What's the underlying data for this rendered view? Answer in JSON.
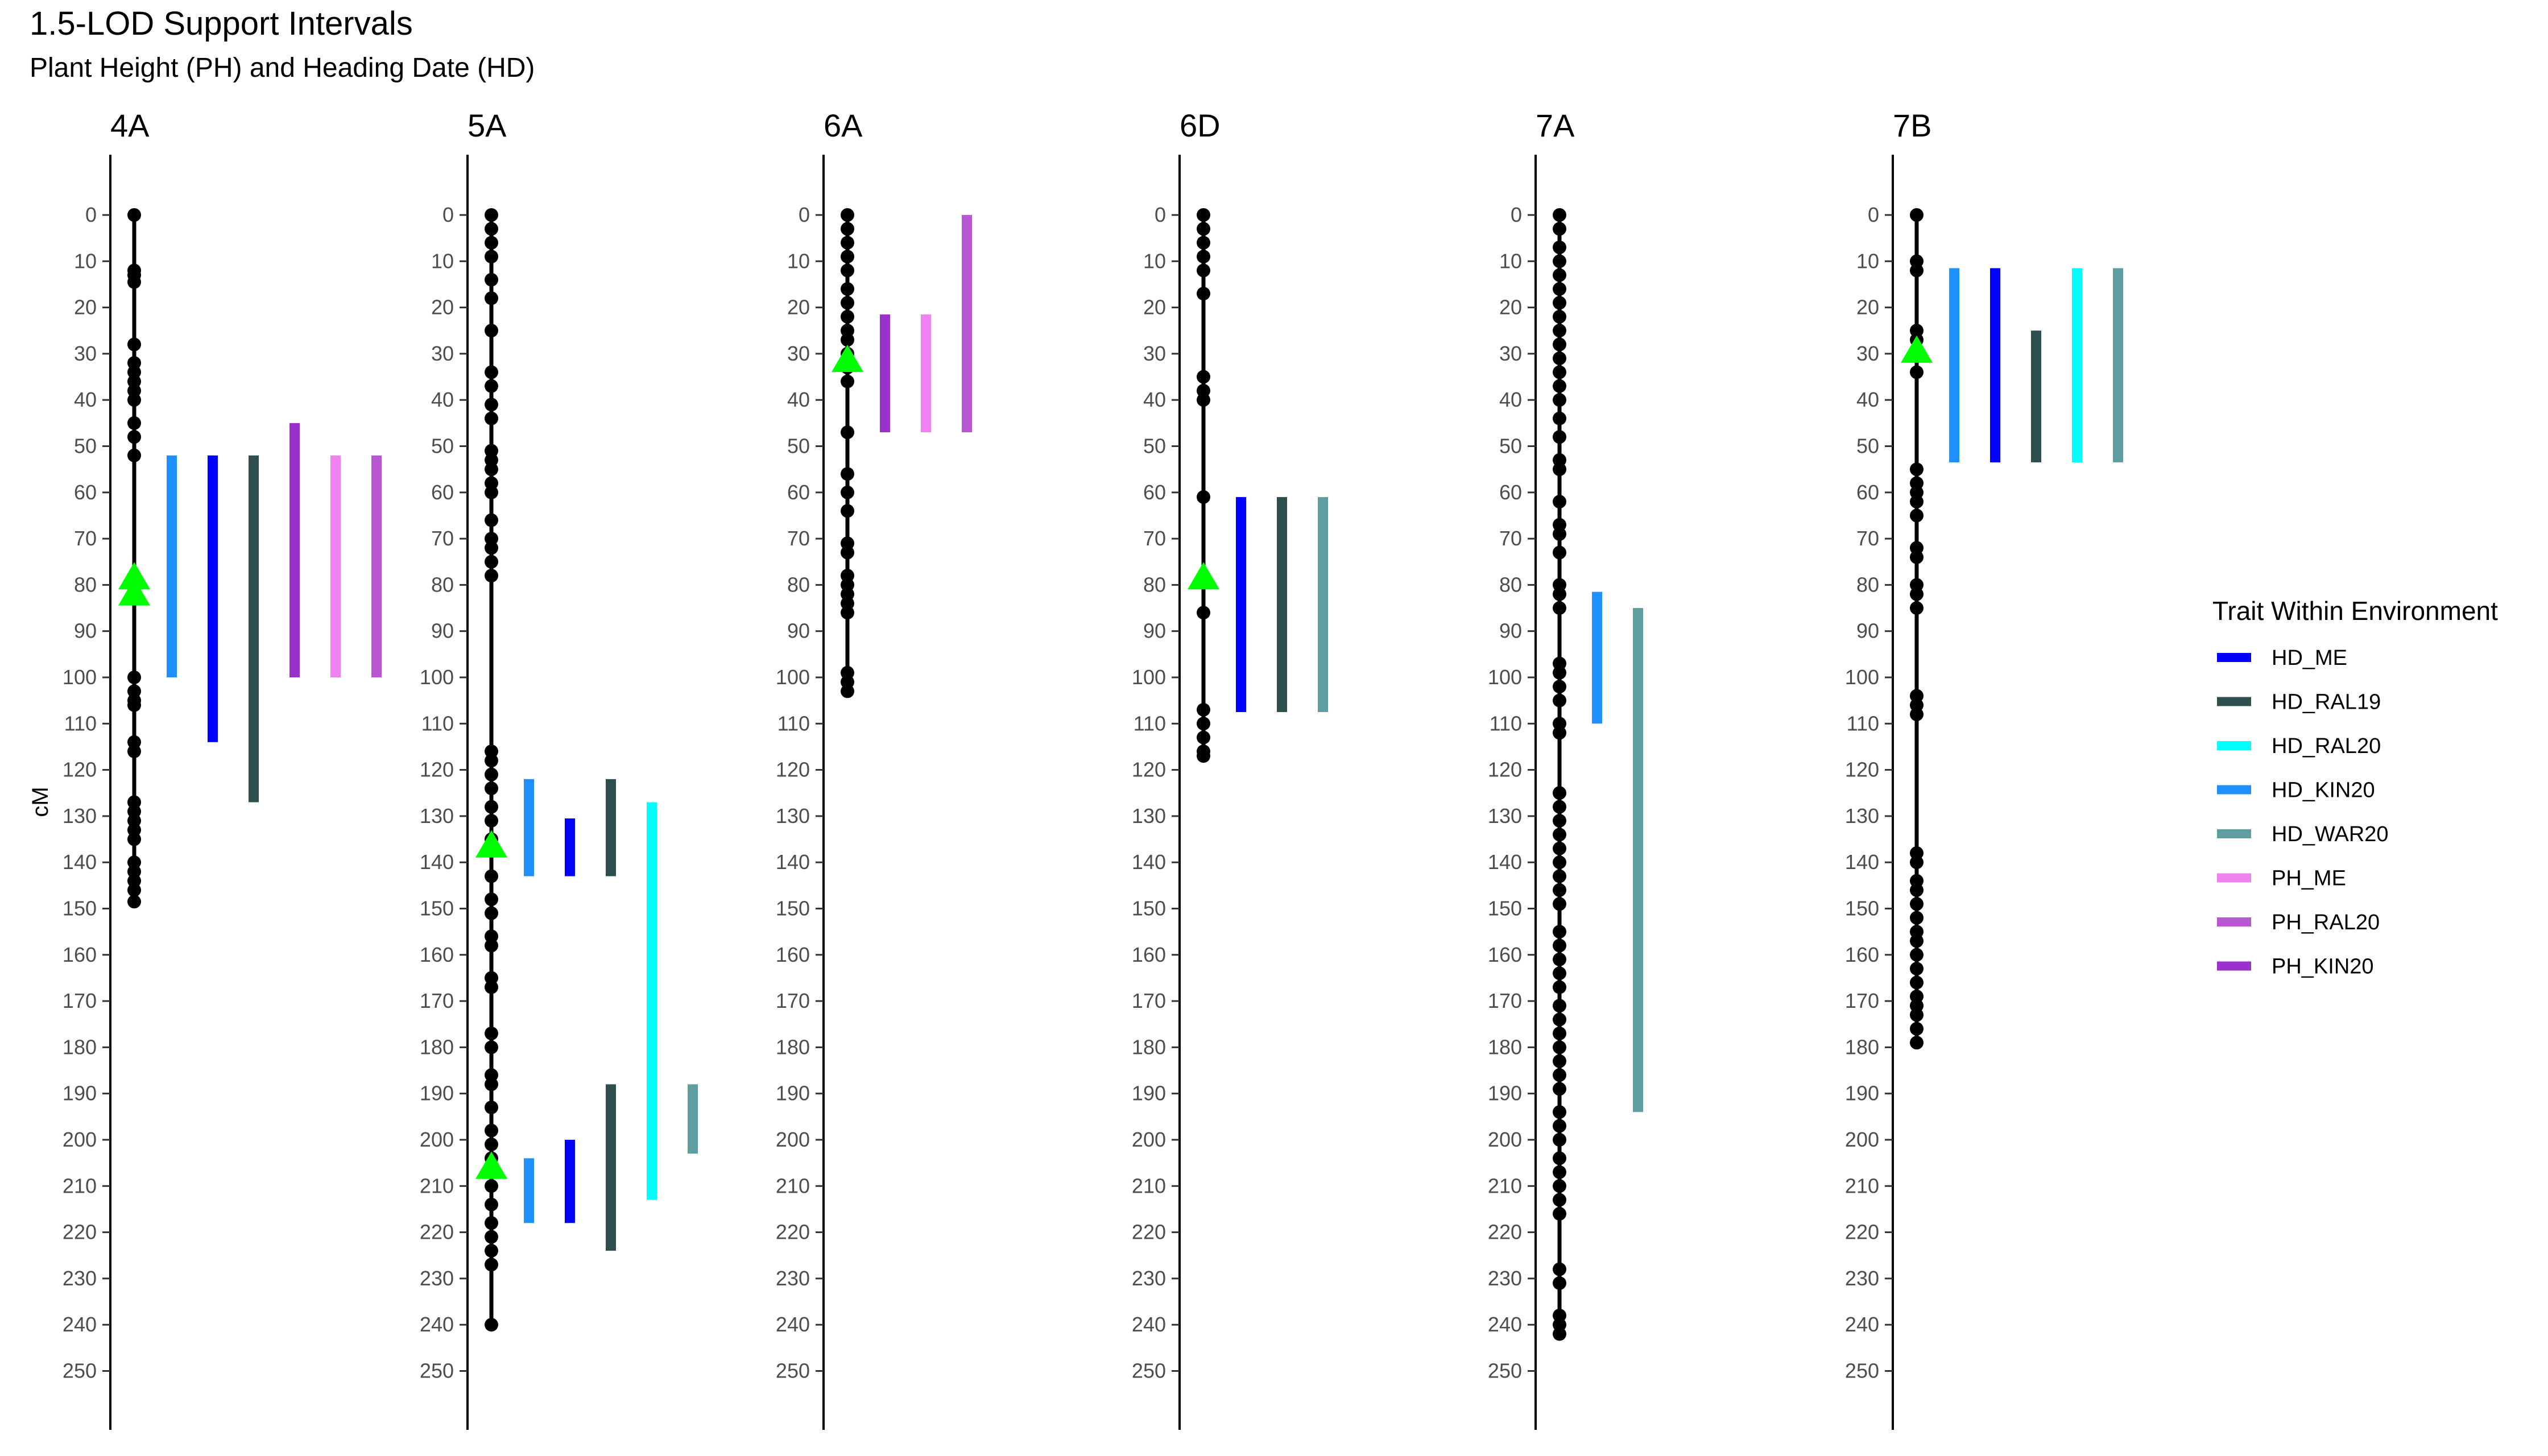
{
  "chart_data": {
    "type": "scatter",
    "title": "1.5-LOD Support Intervals",
    "subtitle": "Plant Height (PH) and Heading Date (HD)",
    "ylabel": "cM",
    "y_ticks": [
      0,
      10,
      20,
      30,
      40,
      50,
      60,
      70,
      80,
      90,
      100,
      110,
      120,
      130,
      140,
      150,
      160,
      170,
      180,
      190,
      200,
      210,
      220,
      230,
      240,
      250
    ],
    "ylim": [
      0,
      250
    ],
    "y_reversed": true,
    "grid": false,
    "legend": {
      "title": "Trait Within Environment",
      "placement": "right",
      "entries": [
        {
          "name": "HD_ME",
          "color": "#0000FF"
        },
        {
          "name": "HD_RAL19",
          "color": "#2F4F4F"
        },
        {
          "name": "HD_RAL20",
          "color": "#00FFFF"
        },
        {
          "name": "HD_KIN20",
          "color": "#1E90FF"
        },
        {
          "name": "HD_WAR20",
          "color": "#5F9EA0"
        },
        {
          "name": "PH_ME",
          "color": "#EE82EE"
        },
        {
          "name": "PH_RAL20",
          "color": "#BA55D3"
        },
        {
          "name": "PH_KIN20",
          "color": "#9932CC"
        }
      ]
    },
    "chromosomes": [
      {
        "name": "4A",
        "length": 148.5,
        "markers": [
          0,
          12,
          13,
          14.5,
          28,
          32,
          34,
          36,
          38,
          40,
          45,
          48,
          52,
          100,
          103,
          105,
          106,
          114,
          116,
          127,
          129,
          131,
          133,
          135,
          140,
          142,
          144,
          146,
          148.5
        ],
        "qtl": [
          78.5,
          82
        ],
        "intervals": [
          {
            "trait": "HD_KIN20",
            "start": 52,
            "end": 100
          },
          {
            "trait": "HD_ME",
            "start": 52,
            "end": 114
          },
          {
            "trait": "HD_RAL19",
            "start": 52,
            "end": 127
          },
          {
            "trait": "PH_KIN20",
            "start": 45,
            "end": 100
          },
          {
            "trait": "PH_ME",
            "start": 52,
            "end": 100
          },
          {
            "trait": "PH_RAL20",
            "start": 52,
            "end": 100
          }
        ]
      },
      {
        "name": "5A",
        "length": 240,
        "markers": [
          0,
          3,
          6,
          9,
          14,
          18,
          25,
          34,
          37,
          41,
          44,
          51,
          53,
          55,
          58,
          60,
          66,
          70,
          72,
          75,
          78,
          116,
          118,
          121,
          124,
          128,
          131,
          135,
          143,
          148,
          151,
          156,
          158,
          165,
          167,
          177,
          180,
          186,
          188,
          193,
          198,
          201,
          204,
          206,
          210,
          214,
          218,
          221,
          224,
          227,
          240
        ],
        "qtl": [
          136.5,
          206
        ],
        "intervals": [
          {
            "trait": "HD_KIN20",
            "start": 122,
            "end": 143
          },
          {
            "trait": "HD_ME",
            "start": 130.5,
            "end": 143
          },
          {
            "trait": "HD_RAL19",
            "start": 122,
            "end": 143
          },
          {
            "trait": "HD_RAL20",
            "start": 127,
            "end": 213
          },
          {
            "trait": "HD_WAR20",
            "start": 188,
            "end": 203
          },
          {
            "trait": "HD_KIN20",
            "start": 204,
            "end": 218
          },
          {
            "trait": "HD_ME",
            "start": 200,
            "end": 218
          },
          {
            "trait": "HD_RAL19",
            "start": 188,
            "end": 224
          }
        ]
      },
      {
        "name": "6A",
        "length": 103,
        "markers": [
          0,
          3,
          6,
          9,
          12,
          16,
          19,
          22,
          25,
          27,
          30,
          33,
          36,
          47,
          56,
          60,
          64,
          71,
          73,
          78,
          80,
          82,
          84,
          86,
          99,
          101,
          103
        ],
        "qtl": [
          31.5
        ],
        "intervals": [
          {
            "trait": "PH_KIN20",
            "start": 21.5,
            "end": 47
          },
          {
            "trait": "PH_ME",
            "start": 21.5,
            "end": 47
          },
          {
            "trait": "PH_RAL20",
            "start": 0,
            "end": 47
          }
        ]
      },
      {
        "name": "6D",
        "length": 117,
        "markers": [
          0,
          3,
          6,
          9,
          12,
          17,
          35,
          38,
          40,
          61,
          86,
          107,
          110,
          113,
          116,
          117
        ],
        "qtl": [
          78.5
        ],
        "intervals": [
          {
            "trait": "HD_ME",
            "start": 61,
            "end": 107.5
          },
          {
            "trait": "HD_RAL19",
            "start": 61,
            "end": 107.5
          },
          {
            "trait": "HD_WAR20",
            "start": 61,
            "end": 107.5
          }
        ]
      },
      {
        "name": "7A",
        "length": 242,
        "markers": [
          0,
          3,
          7,
          10,
          13,
          16,
          19,
          22,
          25,
          28,
          31,
          34,
          37,
          40,
          44,
          48,
          53,
          55,
          62,
          67,
          69,
          73,
          80,
          82,
          85,
          97,
          99,
          102,
          105,
          110,
          112,
          125,
          128,
          131,
          134,
          137,
          140,
          143,
          146,
          149,
          155,
          158,
          161,
          164,
          167,
          171,
          174,
          177,
          180,
          183,
          186,
          189,
          194,
          197,
          200,
          204,
          207,
          210,
          213,
          216,
          228,
          231,
          238,
          240,
          242
        ],
        "qtl": [],
        "intervals": [
          {
            "trait": "HD_KIN20",
            "start": 81.5,
            "end": 110
          },
          {
            "trait": "HD_WAR20",
            "start": 85,
            "end": 194
          }
        ]
      },
      {
        "name": "7B",
        "length": 179,
        "markers": [
          0,
          10,
          12,
          25,
          27,
          34,
          55,
          58,
          60,
          62,
          65,
          72,
          74,
          80,
          82,
          85,
          104,
          106,
          108,
          138,
          140,
          144,
          146,
          149,
          152,
          155,
          157,
          160,
          163,
          166,
          169,
          171,
          173,
          176,
          179
        ],
        "qtl": [
          29.5
        ],
        "intervals": [
          {
            "trait": "HD_KIN20",
            "start": 11.5,
            "end": 53.5
          },
          {
            "trait": "HD_ME",
            "start": 11.5,
            "end": 53.5
          },
          {
            "trait": "HD_RAL19",
            "start": 25,
            "end": 53.5
          },
          {
            "trait": "HD_RAL20",
            "start": 11.5,
            "end": 53.5
          },
          {
            "trait": "HD_WAR20",
            "start": 11.5,
            "end": 53.5
          }
        ]
      }
    ]
  }
}
